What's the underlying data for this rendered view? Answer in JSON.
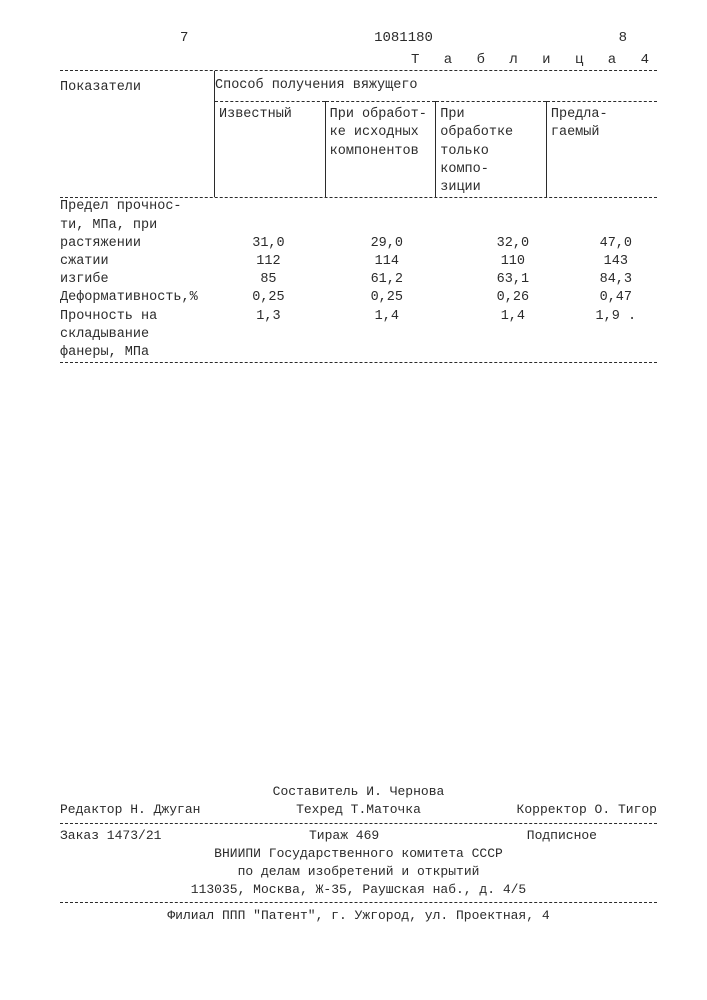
{
  "header": {
    "left_num": "7",
    "doc_num": "1081180",
    "right_num": "8",
    "table_label": "Т а б л и ц а  4"
  },
  "table": {
    "col1_header": "Показатели",
    "group_header": "Способ получения вяжущего",
    "sub_headers": {
      "c2": "Известный",
      "c3": "При обработ-\nке исходных\nкомпонентов",
      "c4": "При обработке\nтолько компо-\nзиции",
      "c5": "Предла-\nгаемый"
    },
    "rows": [
      {
        "label": "Предел прочнос-\nти, МПа, при",
        "v": [
          "",
          "",
          "",
          ""
        ]
      },
      {
        "label": "растяжении",
        "indent": true,
        "v": [
          "31,0",
          "29,0",
          "32,0",
          "47,0"
        ]
      },
      {
        "label": "сжатии",
        "indent": true,
        "v": [
          "112",
          "114",
          "110",
          "143"
        ]
      },
      {
        "label": "изгибе",
        "indent": true,
        "v": [
          "85",
          "61,2",
          "63,1",
          "84,3"
        ]
      },
      {
        "label": "Деформативность,%",
        "v": [
          "0,25",
          "0,25",
          "0,26",
          "0,47"
        ]
      },
      {
        "label": "Прочность на\nскладывание\nфанеры, МПа",
        "v": [
          "1,3",
          "1,4",
          "1,4",
          "1,9 ."
        ]
      }
    ]
  },
  "colophon": {
    "compiler": "Составитель И. Чернова",
    "editor": "Редактор Н. Джуган",
    "tech": "Техред Т.Маточка",
    "corrector": "Корректор О. Тигор",
    "order": "Заказ 1473/21",
    "tirazh": "Тираж 469",
    "sign": "Подписное",
    "org1": "ВНИИПИ Государственного комитета СССР",
    "org2": "по делам изобретений и открытий",
    "addr": "113035, Москва, Ж-35, Раушская наб., д. 4/5",
    "filial": "Филиал ППП \"Патент\", г. Ужгород, ул. Проектная, 4"
  }
}
